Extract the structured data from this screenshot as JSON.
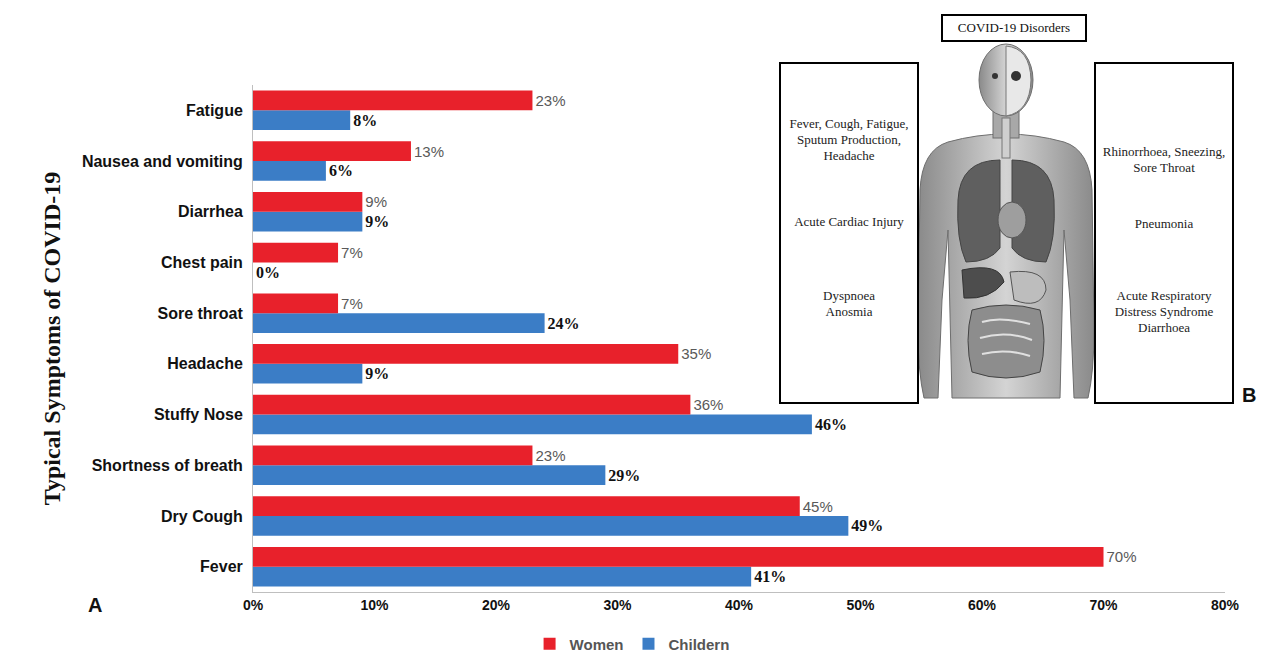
{
  "chart_data": {
    "type": "bar",
    "orientation": "horizontal",
    "panel": "A",
    "ylabel": "Typical Symptoms of COVID-19",
    "categories": [
      "Fever",
      "Dry Cough",
      "Shortness of breath",
      "Stuffy Nose",
      "Headache",
      "Sore throat",
      "Chest pain",
      "Diarrhea",
      "Nausea and vomiting",
      "Fatigue"
    ],
    "series": [
      {
        "name": "Women",
        "color": "#e8212b",
        "values": [
          70,
          45,
          23,
          36,
          35,
          7,
          7,
          9,
          13,
          23
        ],
        "value_labels": [
          "70%",
          "45%",
          "23%",
          "36%",
          "35%",
          "7%",
          "7%",
          "9%",
          "13%",
          "23%"
        ]
      },
      {
        "name": "Childern",
        "color": "#3b7dc6",
        "values": [
          41,
          49,
          29,
          46,
          9,
          24,
          0,
          9,
          6,
          8
        ],
        "value_labels": [
          "41%",
          "49%",
          "29%",
          "46%",
          "9%",
          "24%",
          "0%",
          "9%",
          "6%",
          "8%"
        ]
      }
    ],
    "xlim": [
      0,
      80
    ],
    "xticks": [
      {
        "value": 0,
        "label": "0%"
      },
      {
        "value": 10,
        "label": "10%"
      },
      {
        "value": 20,
        "label": "20%"
      },
      {
        "value": 30,
        "label": "30%"
      },
      {
        "value": 40,
        "label": "40%"
      },
      {
        "value": 50,
        "label": "50%"
      },
      {
        "value": 60,
        "label": "60%"
      },
      {
        "value": 70,
        "label": "70%"
      },
      {
        "value": 80,
        "label": "80%"
      }
    ],
    "grid": false,
    "legend": "bottom",
    "data_labels": true
  },
  "diagram": {
    "panel": "B",
    "title": "COVID-19 Disorders",
    "left": [
      [
        "Fever, Cough, Fatigue, Sputum Production, Headache"
      ],
      [
        "Acute Cardiac Injury"
      ],
      [
        "Dyspnoea",
        "Anosmia"
      ]
    ],
    "right": [
      [
        "Rhinorrhoea, Sneezing, Sore Throat"
      ],
      [
        "Pneumonia"
      ],
      [
        "Acute Respiratory Distress Syndrome",
        "Diarrhoea"
      ]
    ]
  }
}
